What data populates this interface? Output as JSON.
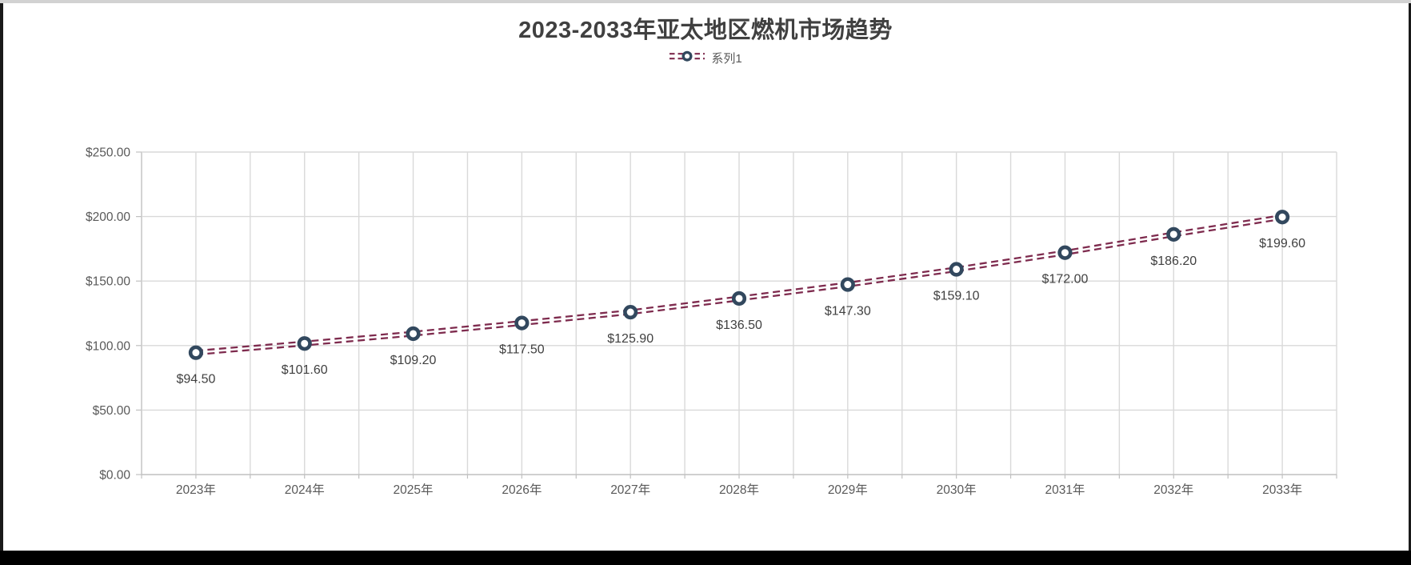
{
  "chart_data": {
    "type": "line",
    "title": "2023-2033年亚太地区燃机市场趋势",
    "legend_position": "top",
    "categories": [
      "2023年",
      "2024年",
      "2025年",
      "2026年",
      "2027年",
      "2028年",
      "2029年",
      "2030年",
      "2031年",
      "2032年",
      "2033年"
    ],
    "series": [
      {
        "name": "系列1",
        "values": [
          94.5,
          101.6,
          109.2,
          117.5,
          125.9,
          136.5,
          147.3,
          159.1,
          172.0,
          186.2,
          199.6
        ],
        "labels": [
          "$94.50",
          "$101.60",
          "$109.20",
          "$117.50",
          "$125.90",
          "$136.50",
          "$147.30",
          "$159.10",
          "$172.00",
          "$186.20",
          "$199.60"
        ]
      }
    ],
    "xlabel": "",
    "ylabel": "",
    "ylim": [
      0,
      250
    ],
    "y_tick_step": 50,
    "y_ticks": [
      "$0.00",
      "$50.00",
      "$100.00",
      "$150.00",
      "$200.00",
      "$250.00"
    ],
    "grid": {
      "horizontal": "major",
      "vertical": "half-category-minor"
    },
    "line_style": "double-dashed",
    "marker_style": "open-circle",
    "colors": {
      "line": "#7e2b4e",
      "marker_stroke": "#32485e",
      "marker_fill": "#ffffff",
      "grid": "#d9d9d9",
      "axis": "#c0c0c0",
      "tick_label": "#595959",
      "data_label": "#404040",
      "title": "#404040",
      "legend_text": "#595959"
    }
  }
}
